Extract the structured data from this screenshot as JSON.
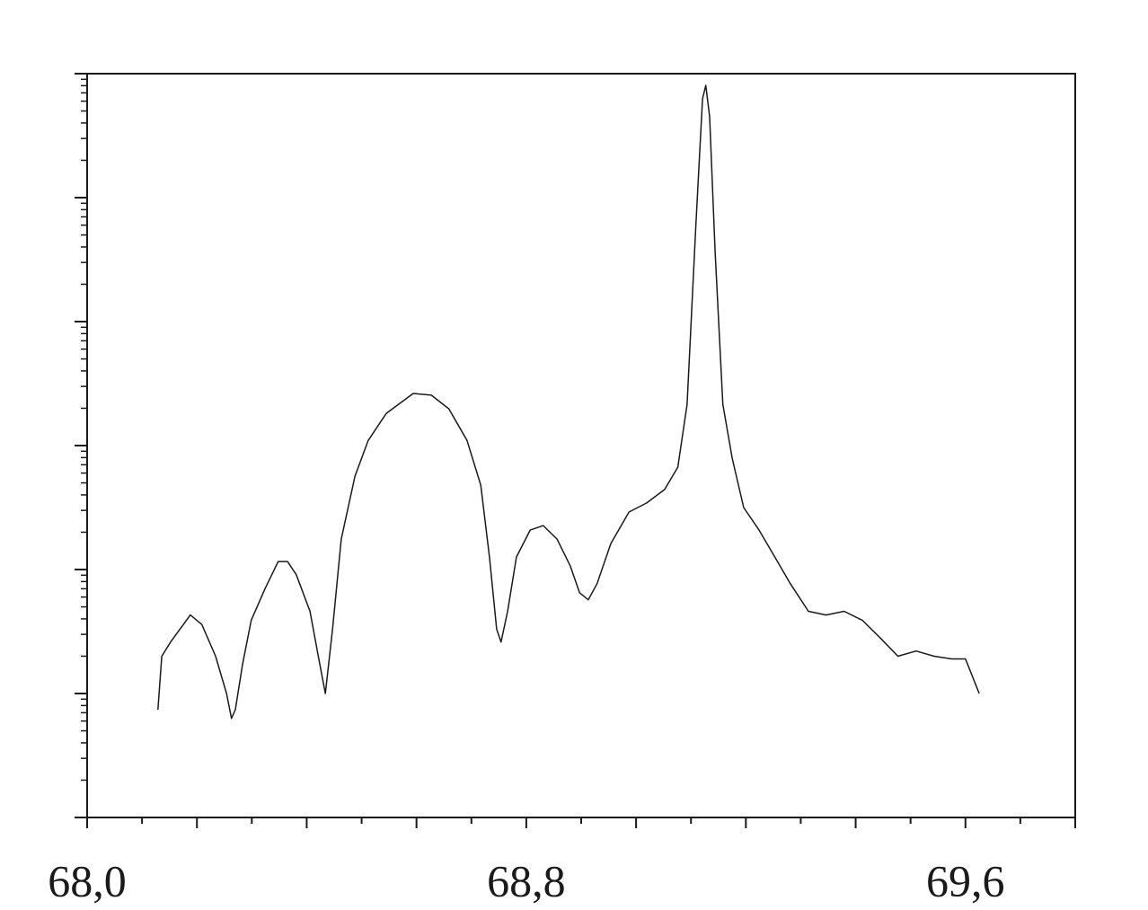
{
  "chart_data": {
    "type": "line",
    "log_y": true,
    "show_ytick_labels": false,
    "color": "#1a1a1a",
    "xlim": [
      68.0,
      69.8
    ],
    "ylim": [
      1,
      1000000
    ],
    "xticks": [
      {
        "value": 68.0,
        "label": "68,0"
      },
      {
        "value": 68.8,
        "label": "68,8"
      },
      {
        "value": 69.6,
        "label": "69,6"
      }
    ],
    "xminor_ticks": [
      68.1,
      68.2,
      68.3,
      68.4,
      68.5,
      68.6,
      68.7,
      68.9,
      69.0,
      69.1,
      69.2,
      69.3,
      69.4,
      69.5,
      69.7,
      69.8
    ],
    "yticks": [
      1,
      10,
      100,
      1000,
      10000,
      100000,
      1000000
    ],
    "x": [
      68.129,
      68.136,
      68.152,
      68.169,
      68.188,
      68.209,
      68.234,
      68.254,
      68.263,
      68.27,
      68.283,
      68.299,
      68.324,
      68.348,
      68.365,
      68.381,
      68.406,
      68.422,
      68.434,
      68.447,
      68.463,
      68.488,
      68.512,
      68.545,
      68.594,
      68.627,
      68.659,
      68.692,
      68.717,
      68.733,
      68.746,
      68.754,
      68.766,
      68.782,
      68.807,
      68.831,
      68.856,
      68.88,
      68.897,
      68.913,
      68.929,
      68.954,
      68.987,
      69.019,
      69.052,
      69.076,
      69.093,
      69.109,
      69.121,
      69.127,
      69.134,
      69.144,
      69.158,
      69.175,
      69.196,
      69.224,
      69.248,
      69.281,
      69.314,
      69.346,
      69.379,
      69.412,
      69.445,
      69.477,
      69.51,
      69.543,
      69.575,
      69.6,
      69.625
    ],
    "values": [
      7.4,
      20,
      26,
      33,
      43,
      36,
      20,
      10,
      6.3,
      7.4,
      17,
      39,
      70,
      116,
      116,
      91,
      46,
      19,
      10,
      33,
      176,
      567,
      1100,
      1820,
      2630,
      2550,
      1980,
      1100,
      480,
      126,
      33,
      26,
      46,
      126,
      208,
      226,
      176,
      107,
      65,
      57,
      77,
      162,
      291,
      344,
      442,
      670,
      2150,
      60600,
      627000,
      805000,
      449000,
      36700,
      2150,
      792,
      316,
      208,
      137,
      77,
      46,
      43,
      46,
      39,
      28,
      20,
      22,
      20,
      19,
      19,
      10
    ]
  }
}
